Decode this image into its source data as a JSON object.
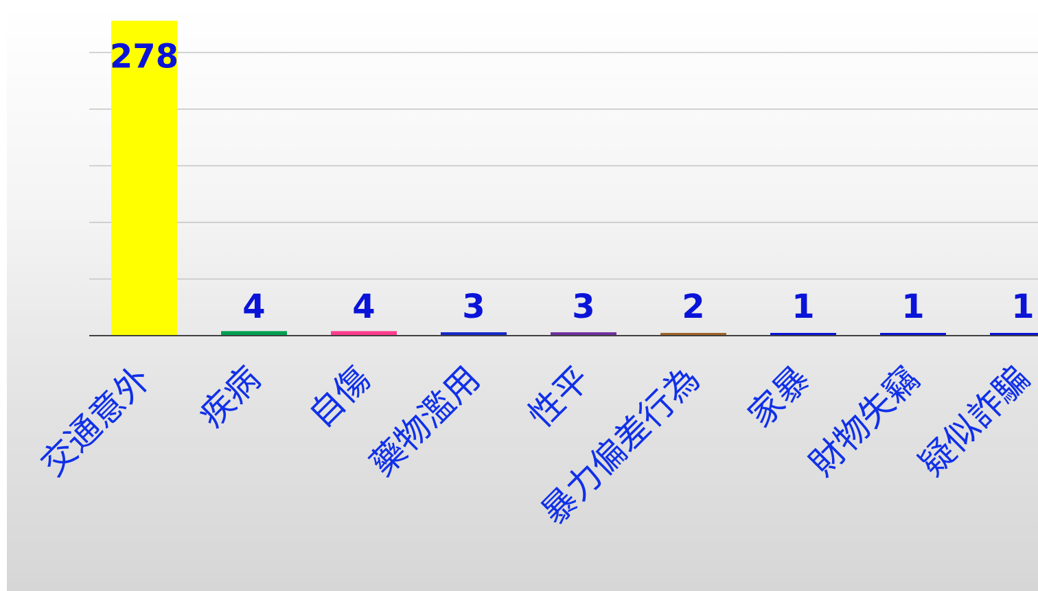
{
  "chart_data": {
    "type": "bar",
    "categories": [
      "交通意外",
      "疾病",
      "自傷",
      "藥物濫用",
      "性平",
      "暴力偏差行為",
      "家暴",
      "財物失竊",
      "疑似詐騙"
    ],
    "values": [
      278,
      4,
      4,
      3,
      3,
      2,
      1,
      1,
      1
    ],
    "value_labels": [
      "278",
      "4",
      "4",
      "3",
      "3",
      "2",
      "1",
      "1",
      "1"
    ],
    "colors": [
      "#ffff00",
      "#00a050",
      "#ff3c8c",
      "#1428c8",
      "#7030a0",
      "#a06428",
      "#0a14d8",
      "#0a14d8",
      "#0a14d8"
    ],
    "label_color": "#0a14d8",
    "category_label_color": "#1030e8",
    "ylim": [
      0,
      280
    ],
    "gridlines": [
      50,
      100,
      150,
      200,
      250
    ],
    "grid": true,
    "legend": "none",
    "title": "",
    "xlabel": "",
    "ylabel": ""
  }
}
